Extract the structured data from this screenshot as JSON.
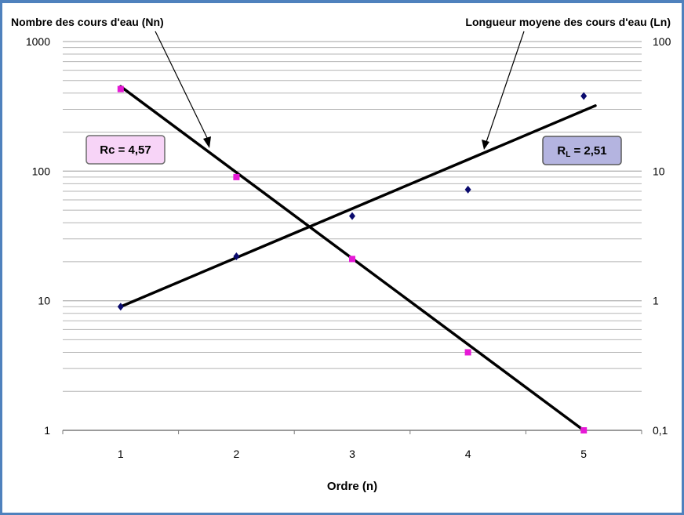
{
  "chart_data": {
    "type": "scatter",
    "title_left": "Nombre des cours d'eau (Nn)",
    "title_right": "Longueur moyene des cours d'eau (Ln)",
    "xlabel": "Ordre (n)",
    "x": [
      1,
      2,
      3,
      4,
      5
    ],
    "x_tick_labels": [
      "1",
      "2",
      "3",
      "4",
      "5"
    ],
    "y_left_scale": "log",
    "y_left_lim": [
      1,
      1000
    ],
    "y_left_tick_labels": [
      "1",
      "10",
      "100",
      "1000"
    ],
    "y_right_scale": "log",
    "y_right_lim": [
      0.1,
      100
    ],
    "y_right_tick_labels": [
      "0,1",
      "1",
      "10",
      "100"
    ],
    "grid": true,
    "series": [
      {
        "name": "Nombre des cours d'eau (Nn)",
        "axis": "left",
        "marker": "square",
        "color": "#e619d6",
        "values": [
          430,
          90,
          21,
          4,
          1
        ],
        "trend_line": {
          "x_start": 1,
          "x_end": 5,
          "y_start": 450,
          "y_end": 1
        }
      },
      {
        "name": "Longueur moyene des cours d'eau (Ln)",
        "axis": "right",
        "marker": "diamond",
        "color": "#0a0a6e",
        "values": [
          0.9,
          2.2,
          4.5,
          7.2,
          38
        ],
        "trend_line": {
          "x_start": 1,
          "x_end": 5.1,
          "y_start": 0.9,
          "y_end": 32
        }
      }
    ],
    "annotations": [
      {
        "label": "Rc = 4,57",
        "fill": "#f7d4f7"
      },
      {
        "label_main": "R",
        "label_sub": "L",
        "label_rest": " = 2,51",
        "fill": "#b4b4e0"
      }
    ]
  }
}
